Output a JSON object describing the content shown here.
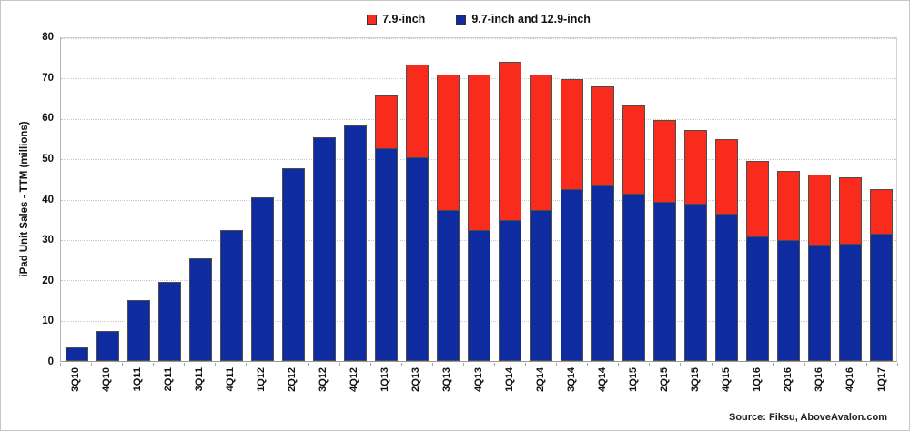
{
  "source_label": "Source: Fiksu, AboveAvalon.com",
  "chart_data": {
    "type": "bar",
    "stacked": true,
    "title": "",
    "xlabel": "",
    "ylabel": "iPad Unit Sales - TTM (millions)",
    "ylim": [
      0,
      80
    ],
    "yticks": [
      0,
      10,
      20,
      30,
      40,
      50,
      60,
      70,
      80
    ],
    "grid": "horizontal-dotted",
    "legend_position": "top-center",
    "categories": [
      "3Q10",
      "4Q10",
      "1Q11",
      "2Q11",
      "3Q11",
      "4Q11",
      "1Q12",
      "2Q12",
      "3Q12",
      "4Q12",
      "1Q13",
      "2Q13",
      "3Q13",
      "4Q13",
      "1Q14",
      "2Q14",
      "3Q14",
      "4Q14",
      "1Q15",
      "2Q15",
      "3Q15",
      "4Q15",
      "1Q16",
      "2Q16",
      "3Q16",
      "4Q16",
      "1Q17"
    ],
    "series": [
      {
        "name": "7.9-inch",
        "color": "#F82B1C",
        "values": [
          0,
          0,
          0,
          0,
          0,
          0,
          0,
          0,
          0,
          0,
          13.0,
          23.0,
          33.7,
          38.5,
          39.2,
          33.7,
          27.2,
          24.6,
          22.0,
          20.2,
          18.3,
          18.4,
          18.7,
          17.3,
          17.5,
          16.6,
          11.1
        ]
      },
      {
        "name": "9.7-inch and 12.9-inch",
        "color": "#0E2BA0",
        "values": [
          3.3,
          7.5,
          15.0,
          19.6,
          25.5,
          32.4,
          40.5,
          47.7,
          55.4,
          58.4,
          52.8,
          50.4,
          37.3,
          32.5,
          35.0,
          37.4,
          42.6,
          43.4,
          41.4,
          39.5,
          39.0,
          36.5,
          30.9,
          29.9,
          28.8,
          29.0,
          31.5
        ]
      }
    ],
    "source": "Source: Fiksu, AboveAvalon.com"
  }
}
